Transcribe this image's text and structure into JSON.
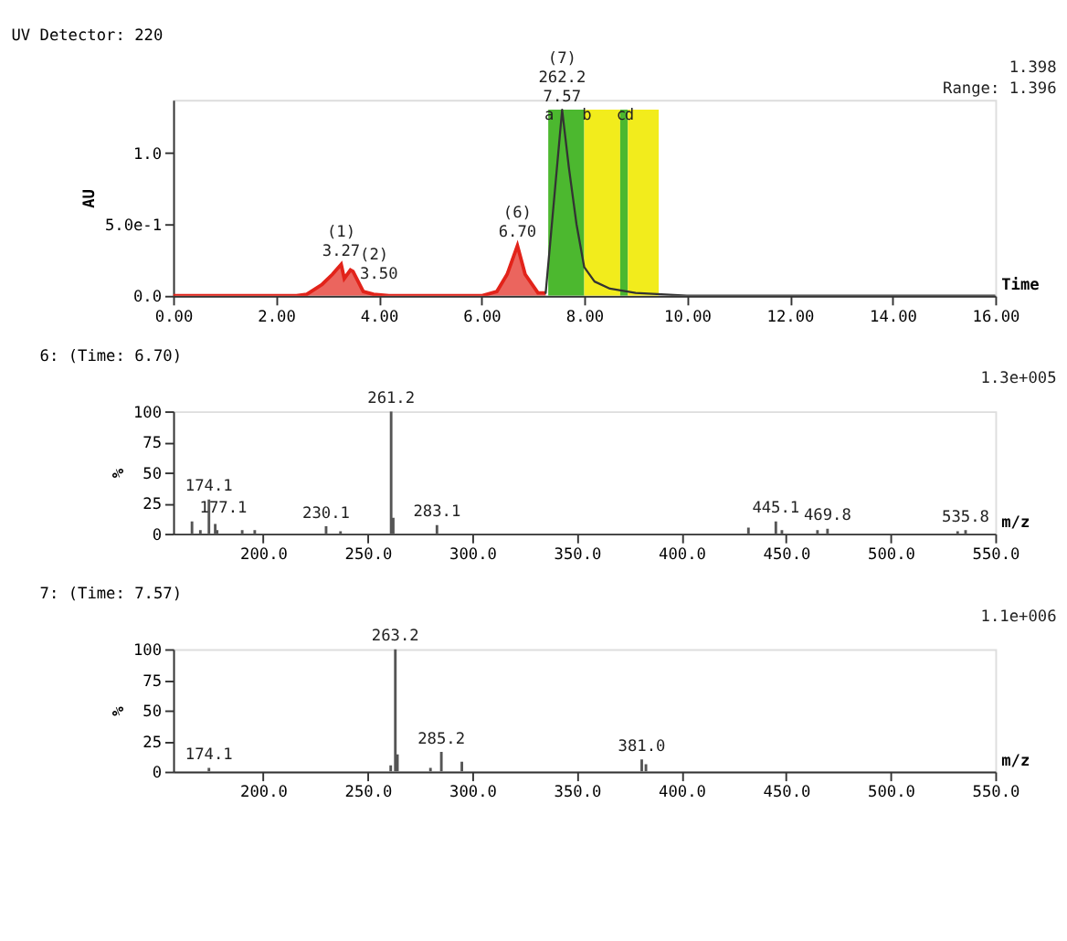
{
  "chart_data": [
    {
      "type": "line",
      "title": "UV Detector: 220",
      "xlabel": "Time",
      "ylabel": "AU",
      "xlim": [
        0,
        16
      ],
      "ylim": [
        0,
        1.37
      ],
      "xticks": [
        {
          "value": 0,
          "label": "0.00"
        },
        {
          "value": 2,
          "label": "2.00"
        },
        {
          "value": 4,
          "label": "4.00"
        },
        {
          "value": 6,
          "label": "6.00"
        },
        {
          "value": 8,
          "label": "8.00"
        },
        {
          "value": 10,
          "label": "10.00"
        },
        {
          "value": 12,
          "label": "12.00"
        },
        {
          "value": 14,
          "label": "14.00"
        },
        {
          "value": 16,
          "label": "16.00"
        }
      ],
      "yticks": [
        {
          "value": 0,
          "label": "0.0"
        },
        {
          "value": 0.5,
          "label": "5.0e-1"
        },
        {
          "value": 1,
          "label": "1.0"
        }
      ],
      "series": [
        {
          "type": "area",
          "color": "#e2231a",
          "x": [
            0,
            2.4,
            2.6,
            2.9,
            3.1,
            3.27,
            3.33,
            3.45,
            3.5,
            3.7,
            3.9,
            4.2,
            6.0,
            6.3,
            6.5,
            6.7,
            6.85,
            7.1,
            7.25
          ],
          "values": [
            0,
            0,
            0.01,
            0.08,
            0.15,
            0.22,
            0.12,
            0.18,
            0.17,
            0.03,
            0.01,
            0,
            0,
            0.03,
            0.15,
            0.35,
            0.15,
            0.02,
            0.02
          ]
        },
        {
          "type": "line",
          "color": "#333333",
          "x": [
            7.25,
            7.57,
            7.7,
            7.85,
            8.0,
            8.2,
            8.5,
            9.0,
            9.5,
            10,
            13,
            16
          ],
          "values": [
            0.02,
            1.3,
            0.9,
            0.5,
            0.2,
            0.1,
            0.05,
            0.02,
            0.01,
            0,
            0,
            0
          ]
        }
      ],
      "bands": [
        {
          "axis": "x",
          "from": 7.3,
          "to": 8.0,
          "color": "#4cb82f"
        },
        {
          "axis": "x",
          "from": 8.0,
          "to": 8.7,
          "color": "#f2ec1c"
        },
        {
          "axis": "x",
          "from": 8.7,
          "to": 8.85,
          "color": "#4cb82f"
        },
        {
          "axis": "x",
          "from": 8.85,
          "to": 9.45,
          "color": "#f2ec1c"
        }
      ],
      "annotations": [
        "1.398",
        "Range: 1.396",
        {
          "text": "(1)\n3.27",
          "x": 3.27,
          "y": 0.22
        },
        {
          "text": "(2)\n3.50",
          "x": 3.5,
          "y": 0.17
        },
        {
          "text": "(6)\n6.70",
          "x": 6.7,
          "y": 0.35
        },
        {
          "text": "(7)\n262.2\n7.57",
          "x": 7.57,
          "y": 1.3
        },
        {
          "text": "a",
          "x": 7.32,
          "y": 1.17
        },
        {
          "text": "b",
          "x": 8.05,
          "y": 1.17
        },
        {
          "text": "c",
          "x": 8.72,
          "y": 1.17
        },
        {
          "text": "d",
          "x": 8.88,
          "y": 1.17
        }
      ],
      "grid": false
    },
    {
      "type": "bar",
      "title": "6: (Time: 6.70)",
      "xlabel": "m/z",
      "ylabel": "%",
      "xlim": [
        157,
        550
      ],
      "ylim": [
        0,
        100
      ],
      "xticks": [
        {
          "value": 200,
          "label": "200.0"
        },
        {
          "value": 250,
          "label": "250.0"
        },
        {
          "value": 300,
          "label": "300.0"
        },
        {
          "value": 350,
          "label": "350.0"
        },
        {
          "value": 400,
          "label": "400.0"
        },
        {
          "value": 450,
          "label": "450.0"
        },
        {
          "value": 500,
          "label": "500.0"
        },
        {
          "value": 550,
          "label": "550.0"
        }
      ],
      "yticks": [
        0,
        25,
        50,
        75,
        100
      ],
      "x": [
        166,
        170,
        174.1,
        177.1,
        178,
        190,
        196,
        230.1,
        237,
        261.2,
        262.2,
        283.1,
        432,
        445.1,
        448,
        465,
        469.8,
        532,
        535.8
      ],
      "values": [
        10,
        3,
        28,
        8,
        3,
        3,
        3,
        6,
        2,
        100,
        13,
        7,
        5,
        10,
        3,
        3,
        4,
        2,
        3
      ],
      "color": "#555555",
      "annotations": [
        "1.3e+005",
        {
          "text": "174.1",
          "x": 174.1,
          "y": 28
        },
        {
          "text": "177.1",
          "x": 181,
          "y": 10
        },
        {
          "text": "230.1",
          "x": 230.1,
          "y": 6
        },
        {
          "text": "261.2",
          "x": 261.2,
          "y": 100
        },
        {
          "text": "283.1",
          "x": 283.1,
          "y": 7
        },
        {
          "text": "445.1",
          "x": 445.1,
          "y": 10
        },
        {
          "text": "469.8",
          "x": 469.8,
          "y": 4
        },
        {
          "text": "535.8",
          "x": 535.8,
          "y": 3
        }
      ],
      "grid": false
    },
    {
      "type": "bar",
      "title": "7: (Time: 7.57)",
      "xlabel": "m/z",
      "ylabel": "%",
      "xlim": [
        157,
        550
      ],
      "ylim": [
        0,
        100
      ],
      "xticks": [
        {
          "value": 200,
          "label": "200.0"
        },
        {
          "value": 250,
          "label": "250.0"
        },
        {
          "value": 300,
          "label": "300.0"
        },
        {
          "value": 350,
          "label": "350.0"
        },
        {
          "value": 400,
          "label": "400.0"
        },
        {
          "value": 450,
          "label": "450.0"
        },
        {
          "value": 500,
          "label": "500.0"
        },
        {
          "value": 550,
          "label": "550.0"
        }
      ],
      "yticks": [
        0,
        25,
        50,
        75,
        100
      ],
      "x": [
        174.1,
        261,
        263.2,
        264.2,
        280,
        285.2,
        295,
        381.0,
        383
      ],
      "values": [
        3,
        5,
        100,
        14,
        3,
        16,
        8,
        10,
        6
      ],
      "color": "#555555",
      "annotations": [
        "1.1e+006",
        {
          "text": "174.1",
          "x": 174.1,
          "y": 3
        },
        {
          "text": "263.2",
          "x": 263.2,
          "y": 100
        },
        {
          "text": "285.2",
          "x": 285.2,
          "y": 16
        },
        {
          "text": "381.0",
          "x": 381.0,
          "y": 10
        }
      ],
      "grid": false
    }
  ]
}
